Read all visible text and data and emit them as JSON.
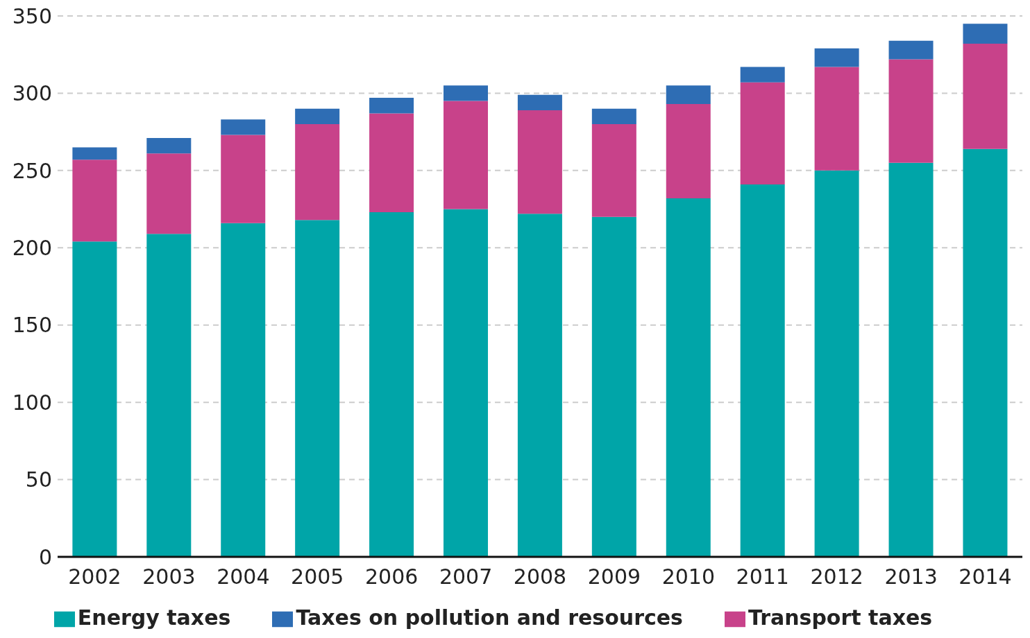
{
  "chart_data": {
    "type": "bar",
    "stacked": true,
    "categories": [
      "2002",
      "2003",
      "2004",
      "2005",
      "2006",
      "2007",
      "2008",
      "2009",
      "2010",
      "2011",
      "2012",
      "2013",
      "2014"
    ],
    "series": [
      {
        "name": "Energy taxes",
        "color": "#00a5a8",
        "values": [
          204,
          209,
          216,
          218,
          223,
          225,
          222,
          220,
          232,
          241,
          250,
          255,
          264
        ]
      },
      {
        "name": "Transport taxes",
        "color": "#c8428a",
        "values": [
          53,
          52,
          57,
          62,
          64,
          70,
          67,
          60,
          61,
          66,
          67,
          67,
          68
        ]
      },
      {
        "name": "Taxes on pollution and resources",
        "color": "#2e6db4",
        "values": [
          8,
          10,
          10,
          10,
          10,
          10,
          10,
          10,
          12,
          10,
          12,
          12,
          13
        ]
      }
    ],
    "ylim": [
      0,
      350
    ],
    "yticks": [
      0,
      50,
      100,
      150,
      200,
      250,
      300,
      350
    ],
    "grid": "y",
    "legend": "bottom"
  }
}
